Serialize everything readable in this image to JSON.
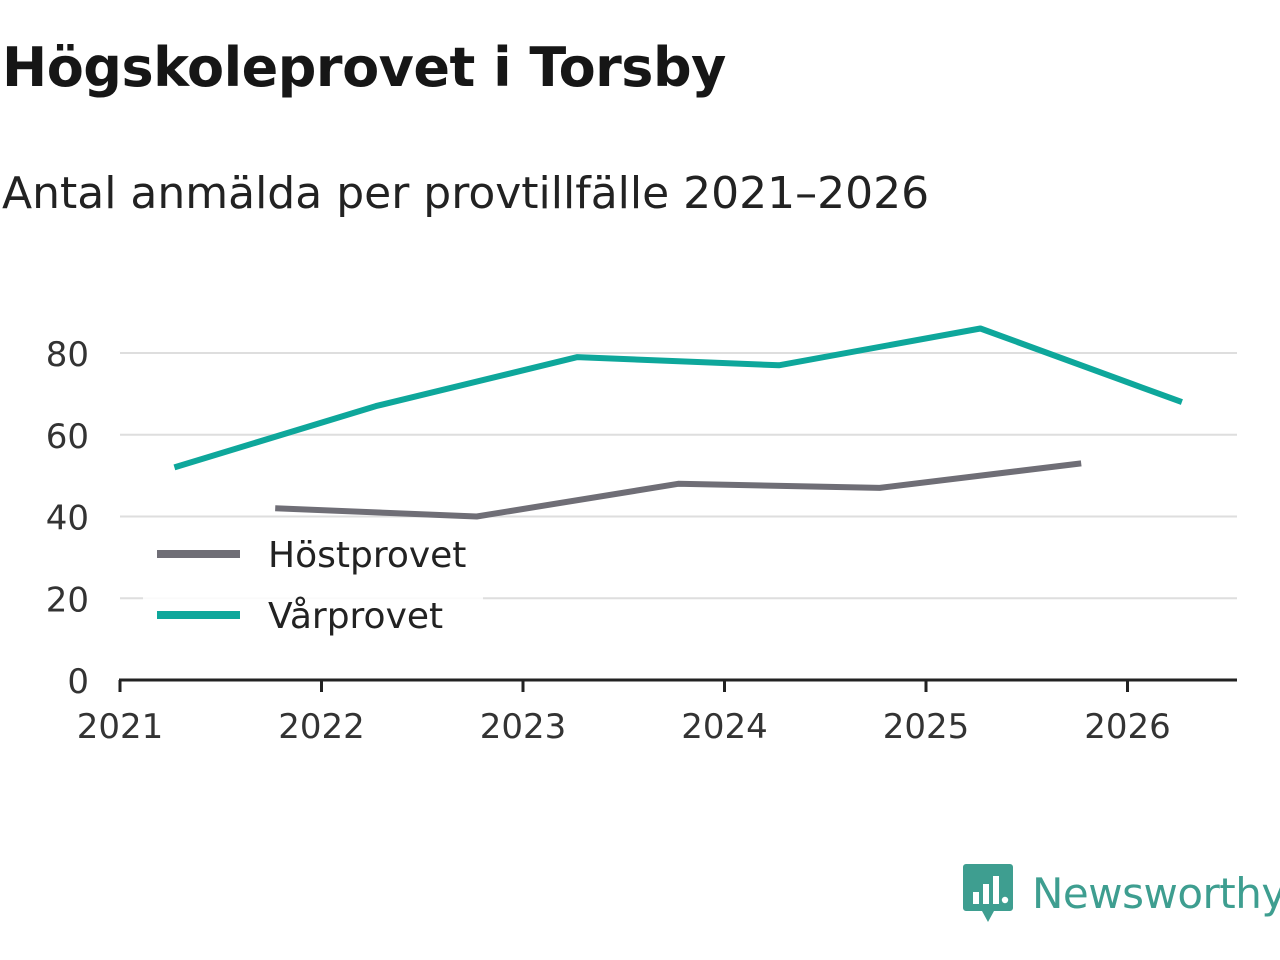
{
  "title": "Högskoleprovet i Torsby",
  "subtitle": "Antal anmälda per provtillfälle 2021–2026",
  "brand": {
    "name": "Newsworthy",
    "color": "#3e9e90"
  },
  "chart_data": {
    "type": "line",
    "title": "Högskoleprovet i Torsby",
    "subtitle": "Antal anmälda per provtillfälle 2021–2026",
    "xlabel": "",
    "ylabel": "",
    "xlim": [
      2021,
      2026.55
    ],
    "ylim": [
      0,
      90
    ],
    "x_ticks": [
      "2021",
      "2022",
      "2023",
      "2024",
      "2025",
      "2026"
    ],
    "y_ticks": [
      "0",
      "20",
      "40",
      "60",
      "80"
    ],
    "grid": true,
    "legend": {
      "position": "bottom-left"
    },
    "series": [
      {
        "name": "Höstprovet",
        "color": "#6f6e76",
        "x": [
          2021.77,
          2022.77,
          2023.77,
          2024.77,
          2025.77
        ],
        "y": [
          42,
          40,
          48,
          47,
          53
        ]
      },
      {
        "name": "Vårprovet",
        "color": "#0ea79b",
        "x": [
          2021.27,
          2022.27,
          2023.27,
          2024.27,
          2025.27,
          2026.27
        ],
        "y": [
          52,
          67,
          79,
          77,
          86,
          68
        ]
      }
    ]
  }
}
